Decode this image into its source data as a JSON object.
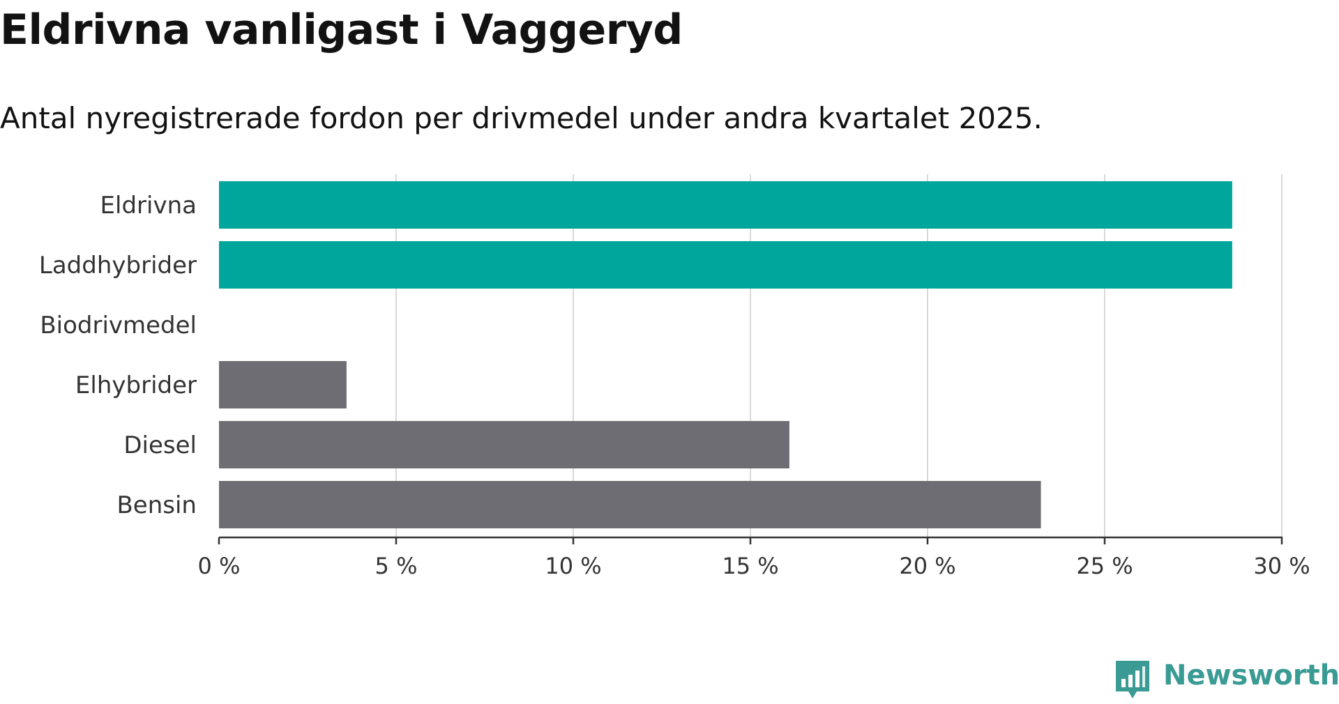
{
  "title": "Eldrivna vanligast i Vaggeryd",
  "subtitle": "Antal nyregistrerade fordon per drivmedel under andra kvartalet 2025.",
  "brand": {
    "name": "Newsworthy",
    "color": "#3a9a94",
    "icon": "bar-chart-speech-bubble-icon"
  },
  "colors": {
    "highlight": "#00a59b",
    "default": "#6e6d73",
    "grid": "#d9d9d9",
    "axis": "#333333",
    "text": "#333333"
  },
  "chart_data": {
    "type": "bar",
    "orientation": "horizontal",
    "categories": [
      "Eldrivna",
      "Laddhybrider",
      "Biodrivmedel",
      "Elhybrider",
      "Diesel",
      "Bensin"
    ],
    "values": [
      28.6,
      28.6,
      0,
      3.6,
      16.1,
      23.2
    ],
    "highlighted": [
      true,
      true,
      false,
      false,
      false,
      false
    ],
    "xlim": [
      0,
      30
    ],
    "ticks": [
      0,
      5,
      10,
      15,
      20,
      25,
      30
    ],
    "tick_labels": [
      "0 %",
      "5 %",
      "10 %",
      "15 %",
      "20 %",
      "25 %",
      "30 %"
    ],
    "unit": "%",
    "grid": true,
    "legend": "none"
  }
}
